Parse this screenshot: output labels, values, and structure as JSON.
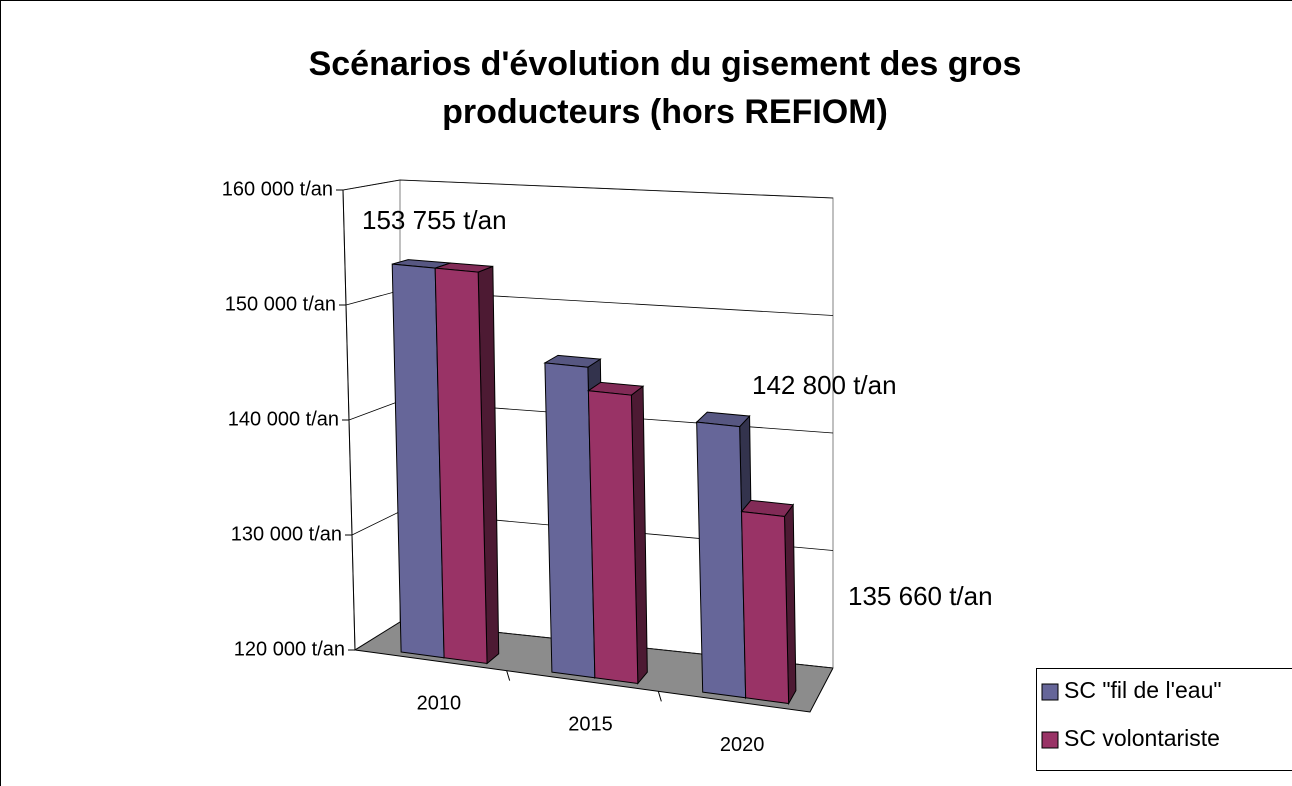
{
  "chart_data": {
    "type": "bar3d",
    "title": "Scénarios d'évolution du gisement des gros producteurs (hors REFIOM)",
    "categories": [
      "2010",
      "2015",
      "2020"
    ],
    "series": [
      {
        "name": "SC \"fil de l'eau\"",
        "color": "#666699",
        "values": [
          153755,
          146500,
          142800
        ],
        "value_labels": [
          "153 755 t/an",
          null,
          "142 800 t/an"
        ]
      },
      {
        "name": "SC volontariste",
        "color": "#993366",
        "values": [
          153755,
          144500,
          135660
        ],
        "value_labels": [
          null,
          null,
          "135 660 t/an"
        ]
      }
    ],
    "ylim": [
      120000,
      160000
    ],
    "yticks": [
      {
        "value": 120000,
        "label": "120 000 t/an"
      },
      {
        "value": 130000,
        "label": "130 000 t/an"
      },
      {
        "value": 140000,
        "label": "140 000 t/an"
      },
      {
        "value": 150000,
        "label": "150 000 t/an"
      },
      {
        "value": 160000,
        "label": "160 000 t/an"
      }
    ],
    "grid": true,
    "legend": "bottom-right"
  }
}
